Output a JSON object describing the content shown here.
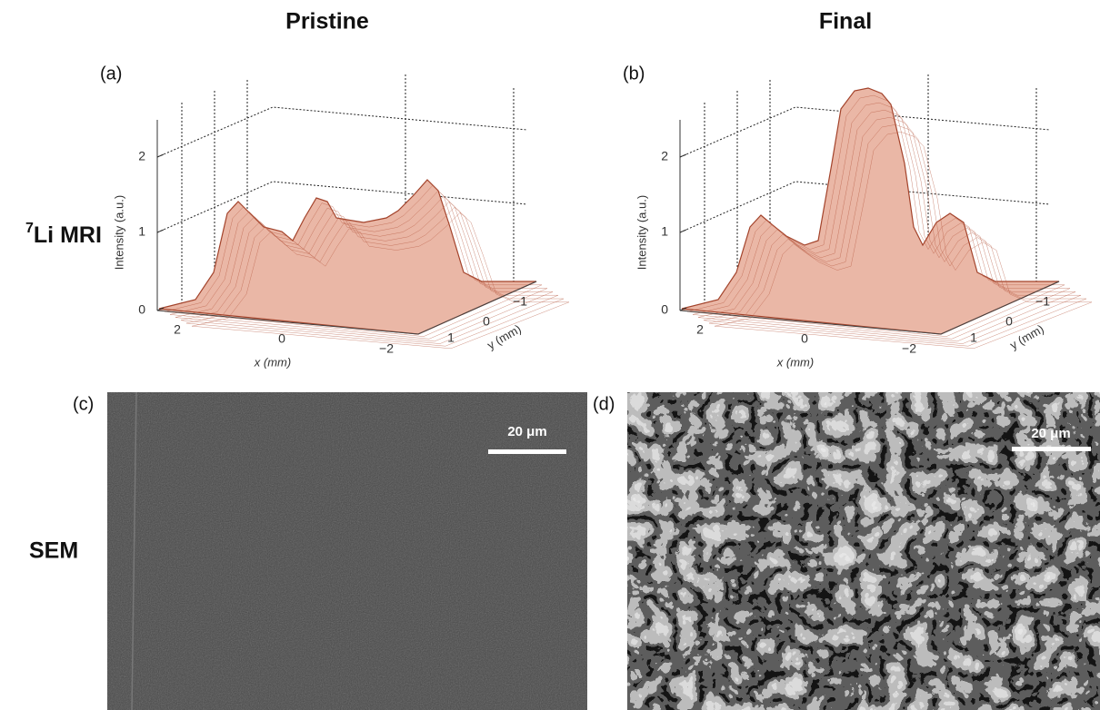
{
  "columns": [
    "Pristine",
    "Final"
  ],
  "rows": [
    {
      "label_sup": "7",
      "label": "Li MRI"
    },
    {
      "label": "SEM"
    }
  ],
  "panels": [
    {
      "tag": "(a)",
      "z_label": "Intensity (a.u.)",
      "z_ticks": [
        "0",
        "1",
        "2"
      ],
      "x_label": "x (mm)",
      "x_ticks": [
        "2",
        "0",
        "−2"
      ],
      "y_label": "y (mm)",
      "y_ticks": [
        "1",
        "0",
        "−1"
      ]
    },
    {
      "tag": "(b)",
      "z_label": "Intensity (a.u.)",
      "z_ticks": [
        "0",
        "1",
        "2"
      ],
      "x_label": "x (mm)",
      "x_ticks": [
        "2",
        "0",
        "−2"
      ],
      "y_label": "y (mm)",
      "y_ticks": [
        "1",
        "0",
        "−1"
      ]
    },
    {
      "tag": "(c)",
      "scale_bar": "20 μm"
    },
    {
      "tag": "(d)",
      "scale_bar": "20 μm"
    }
  ]
}
